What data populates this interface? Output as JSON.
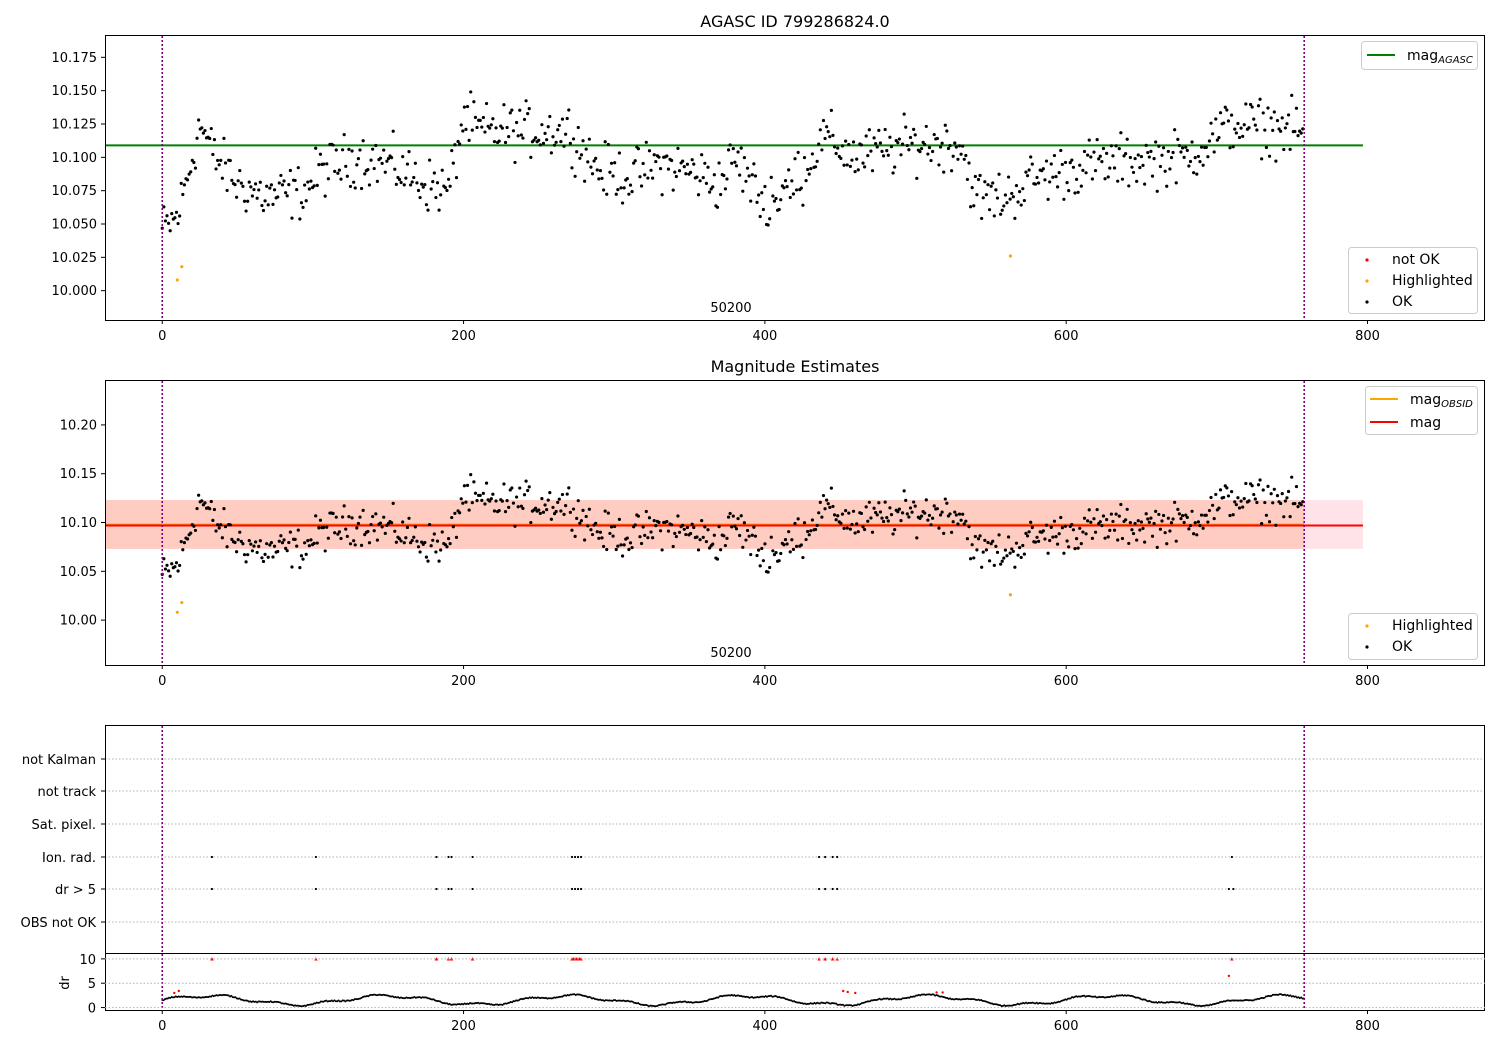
{
  "colors": {
    "ok": "#000000",
    "not_ok": "#ff0000",
    "highlighted": "#ffa500",
    "mag_agasc_line": "#008000",
    "mag_line": "#ff0000",
    "mag_obsid_line": "#ffa500",
    "band_outer": "#ffc0cb",
    "band_inner": "#ffa07a",
    "obs_marker": "#800080",
    "grid": "#b0b0b0"
  },
  "chart_data": [
    {
      "type": "scatter",
      "title": "AGASC ID 799286824.0",
      "xlim": [
        -38,
        878
      ],
      "ylim": [
        9.978,
        10.191
      ],
      "xticks": [
        0,
        200,
        400,
        600,
        800
      ],
      "yticks": [
        10.0,
        10.025,
        10.05,
        10.075,
        10.1,
        10.125,
        10.15,
        10.175
      ],
      "ytick_labels": [
        "10.000",
        "10.025",
        "10.050",
        "10.075",
        "10.100",
        "10.125",
        "10.150",
        "10.175"
      ],
      "obsid_label": "50200",
      "obs_boundaries": [
        0,
        758
      ],
      "hlines": [
        {
          "name": "mag_AGASC",
          "y": 10.109,
          "x": [
            -38,
            797
          ],
          "color": "#008000"
        }
      ],
      "highlighted_points": [
        [
          10,
          10.008
        ],
        [
          13,
          10.018
        ],
        [
          563,
          10.026
        ]
      ],
      "legend_upper": [
        {
          "label": "mag",
          "sub": "AGASC",
          "kind": "line",
          "color": "#008000"
        }
      ],
      "legend_lower": [
        {
          "label": "not OK",
          "kind": "marker",
          "color": "#ff0000"
        },
        {
          "label": "Highlighted",
          "kind": "marker",
          "color": "#ffa500"
        },
        {
          "label": "OK",
          "kind": "marker",
          "color": "#000000"
        }
      ],
      "ok_profile": {
        "x": [
          0,
          10,
          20,
          25,
          35,
          50,
          70,
          95,
          105,
          130,
          150,
          175,
          190,
          200,
          210,
          240,
          270,
          290,
          310,
          330,
          350,
          370,
          380,
          400,
          420,
          440,
          460,
          500,
          530,
          540,
          560,
          580,
          620,
          680,
          710,
          758
        ],
        "mean": [
          10.045,
          10.055,
          10.1,
          10.125,
          10.1,
          10.08,
          10.07,
          10.075,
          10.09,
          10.1,
          10.095,
          10.08,
          10.075,
          10.13,
          10.12,
          10.12,
          10.12,
          10.09,
          10.085,
          10.095,
          10.09,
          10.08,
          10.1,
          10.065,
          10.08,
          10.115,
          10.1,
          10.11,
          10.11,
          10.07,
          10.07,
          10.085,
          10.095,
          10.1,
          10.125,
          10.12
        ],
        "spread": 0.018
      }
    },
    {
      "type": "scatter",
      "title": "Magnitude Estimates",
      "xlim": [
        -38,
        878
      ],
      "ylim": [
        9.954,
        10.245
      ],
      "xticks": [
        0,
        200,
        400,
        600,
        800
      ],
      "yticks": [
        10.0,
        10.05,
        10.1,
        10.15,
        10.2
      ],
      "ytick_labels": [
        "10.00",
        "10.05",
        "10.10",
        "10.15",
        "10.20"
      ],
      "obsid_label": "50200",
      "obs_boundaries": [
        0,
        758
      ],
      "band_outer": {
        "x": [
          -38,
          797
        ],
        "y": [
          10.073,
          10.123
        ],
        "color": "#ffc0cb"
      },
      "band_inner": {
        "x": [
          -38,
          758
        ],
        "y": [
          10.073,
          10.123
        ],
        "color": "#ffa07a"
      },
      "hlines": [
        {
          "name": "mag_OBSID",
          "y": 10.098,
          "x": [
            -38,
            758
          ],
          "color": "#ffa500"
        },
        {
          "name": "mag",
          "y": 10.097,
          "x": [
            -38,
            797
          ],
          "color": "#ff0000"
        }
      ],
      "highlighted_points": [
        [
          10,
          10.008
        ],
        [
          13,
          10.018
        ],
        [
          563,
          10.026
        ]
      ],
      "legend_upper": [
        {
          "label": "mag",
          "sub": "OBSID",
          "kind": "line",
          "color": "#ffa500"
        },
        {
          "label": "mag",
          "sub": "",
          "kind": "line",
          "color": "#ff0000"
        }
      ],
      "legend_lower": [
        {
          "label": "Highlighted",
          "kind": "marker",
          "color": "#ffa500"
        },
        {
          "label": "OK",
          "kind": "marker",
          "color": "#000000"
        }
      ]
    },
    {
      "type": "scatter",
      "title": "",
      "xlim": [
        -38,
        878
      ],
      "xticks": [
        0,
        200,
        400,
        600,
        800
      ],
      "categories": [
        "not Kalman",
        "not track",
        "Sat. pixel.",
        "Ion. rad.",
        "dr > 5",
        "OBS not OK"
      ],
      "flag_points": {
        "Ion. rad.": [
          33,
          102,
          182,
          190,
          192,
          206,
          272,
          274,
          276,
          278,
          436,
          440,
          445,
          448,
          710
        ],
        "dr > 5": [
          33,
          102,
          182,
          190,
          192,
          206,
          272,
          274,
          276,
          278,
          436,
          440,
          445,
          448,
          708,
          711
        ]
      },
      "dr_panel": {
        "ylabel": "dr",
        "ylim": [
          -0.5,
          11
        ],
        "yticks": [
          0,
          5,
          10
        ],
        "clip_value": 10,
        "red_points_x": [
          33,
          102,
          182,
          190,
          192,
          206,
          272,
          273,
          274,
          275,
          276,
          277,
          278,
          436,
          440,
          445,
          448,
          710
        ],
        "red_extra": [
          [
            8,
            3.0
          ],
          [
            11,
            3.4
          ],
          [
            452,
            3.4
          ],
          [
            455,
            3.2
          ],
          [
            460,
            3.0
          ],
          [
            514,
            3.1
          ],
          [
            518,
            3.1
          ],
          [
            708,
            6.5
          ]
        ]
      }
    }
  ]
}
